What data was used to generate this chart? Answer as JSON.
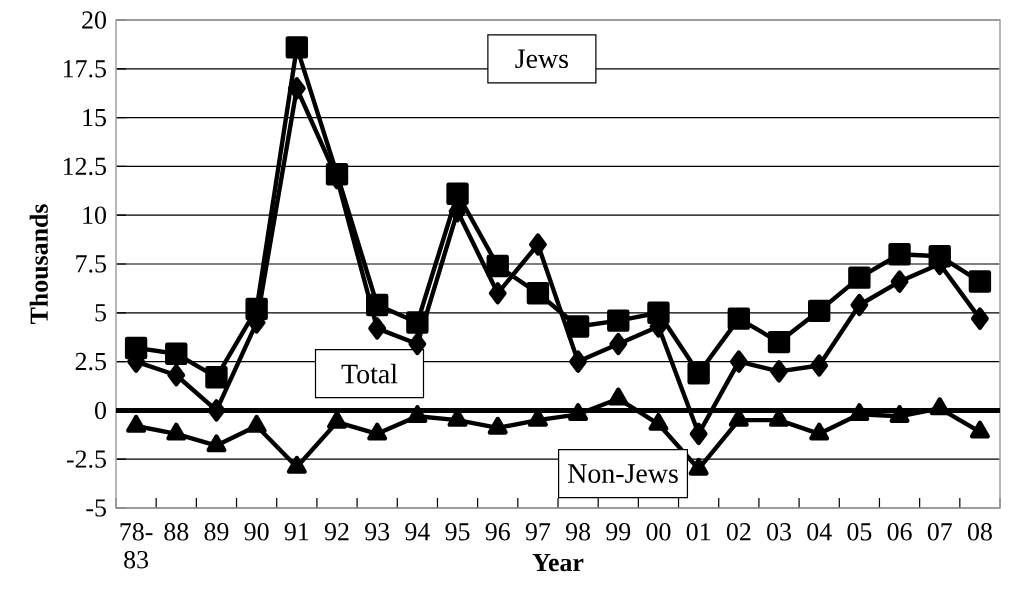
{
  "chart_data": {
    "type": "line",
    "xlabel": "Year",
    "ylabel": "Thousands",
    "categories": [
      "78-83",
      "88",
      "89",
      "90",
      "91",
      "92",
      "93",
      "94",
      "95",
      "96",
      "97",
      "98",
      "99",
      "00",
      "01",
      "02",
      "03",
      "04",
      "05",
      "06",
      "07",
      "08"
    ],
    "series": [
      {
        "name": "Jews",
        "color": "#000000",
        "marker": "square",
        "values": [
          3.2,
          2.9,
          1.7,
          5.2,
          18.6,
          12.1,
          5.4,
          4.5,
          11.1,
          7.4,
          6.0,
          4.3,
          4.6,
          5.0,
          1.9,
          4.7,
          3.5,
          5.1,
          6.8,
          8.0,
          7.9,
          6.6
        ]
      },
      {
        "name": "Total",
        "color": "#000000",
        "marker": "diamond",
        "values": [
          2.5,
          1.8,
          0.0,
          4.5,
          16.5,
          11.9,
          4.2,
          3.4,
          10.2,
          6.0,
          8.5,
          2.5,
          3.4,
          4.3,
          -1.2,
          2.5,
          2.0,
          2.3,
          5.4,
          6.6,
          7.5,
          4.7
        ]
      },
      {
        "name": "Non-Jews",
        "color": "#000000",
        "marker": "triangle",
        "values": [
          -0.8,
          -1.2,
          -1.8,
          -0.8,
          -2.9,
          -0.6,
          -1.2,
          -0.3,
          -0.5,
          -0.9,
          -0.5,
          -0.2,
          0.6,
          -0.7,
          -3.0,
          -0.5,
          -0.5,
          -1.2,
          -0.2,
          -0.3,
          0.1,
          -1.1
        ]
      }
    ],
    "ylim": [
      -5,
      20
    ],
    "yticks": [
      -5,
      -2.5,
      0,
      2.5,
      5,
      7.5,
      10,
      12.5,
      15,
      17.5,
      20
    ],
    "ref_lines": [
      {
        "axis": "y",
        "value": 0,
        "color": "#000000"
      }
    ],
    "grid": "y",
    "line_style": "solid"
  }
}
